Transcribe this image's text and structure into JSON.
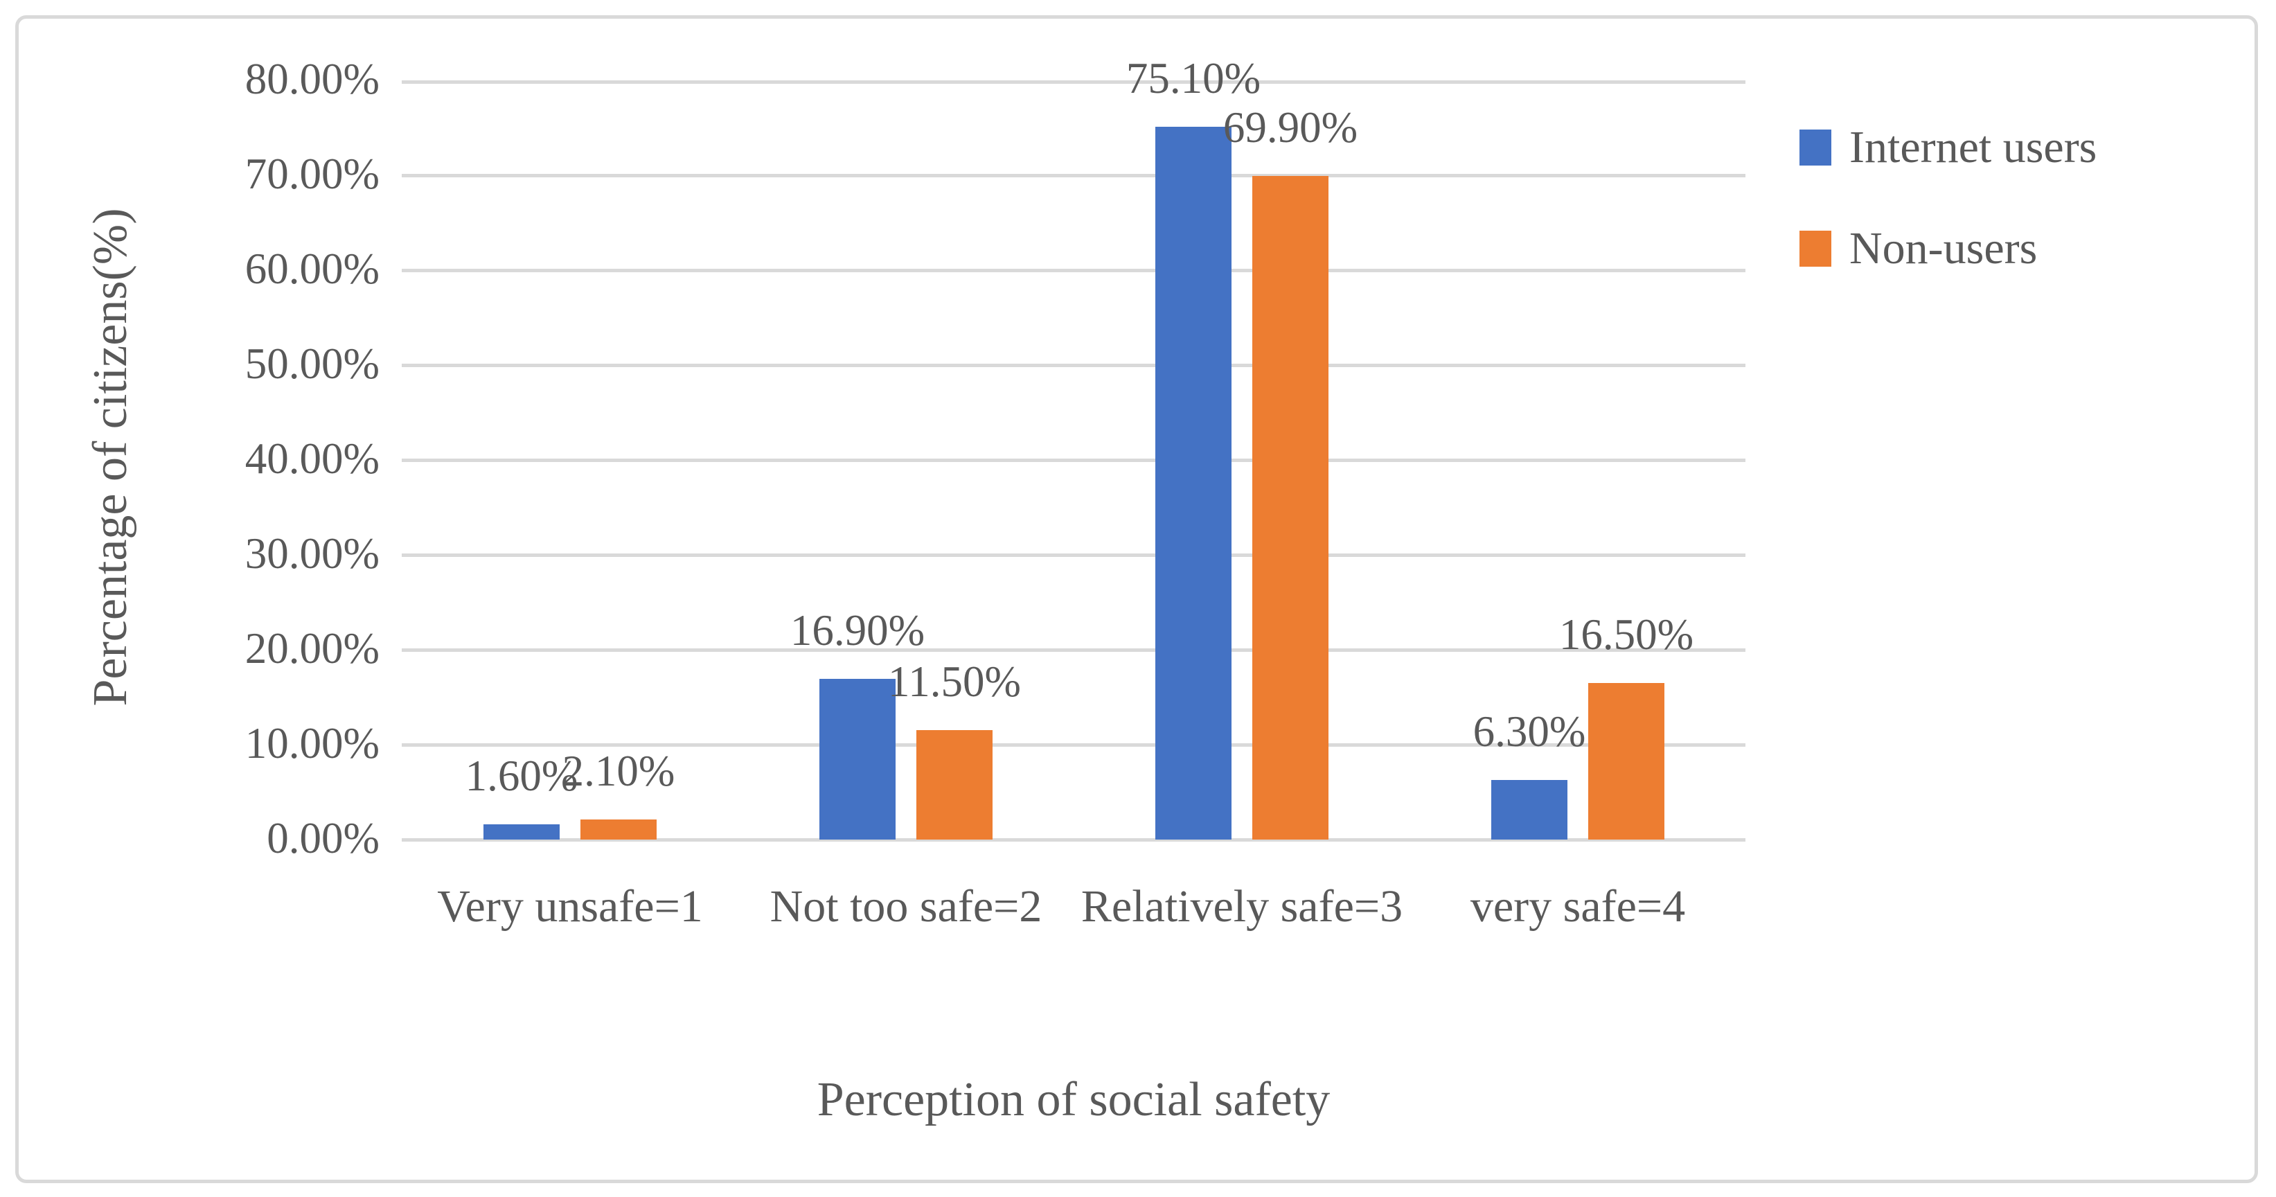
{
  "chart_data": {
    "type": "bar",
    "title": "",
    "categories": [
      "Very unsafe=1",
      "Not too safe=2",
      "Relatively safe=3",
      "very safe=4"
    ],
    "series": [
      {
        "name": "Internet users",
        "color": "#4472c4",
        "values": [
          1.6,
          16.9,
          75.1,
          6.3
        ],
        "labels": [
          "1.60%",
          "16.90%",
          "75.10%",
          "6.30%"
        ]
      },
      {
        "name": "Non-users",
        "color": "#ed7d31",
        "values": [
          2.1,
          11.5,
          69.9,
          16.5
        ],
        "labels": [
          "2.10%",
          "11.50%",
          "69.90%",
          "16.50%"
        ]
      }
    ],
    "xlabel": "Perception of social safety",
    "ylabel": "Percentage of citizens(%)",
    "ylim": [
      0,
      80
    ],
    "y_tick_step": 10,
    "y_ticks": [
      "0.00%",
      "10.00%",
      "20.00%",
      "30.00%",
      "40.00%",
      "50.00%",
      "60.00%",
      "70.00%",
      "80.00%"
    ],
    "grid": true,
    "legend_position": "right"
  },
  "style": {
    "bar_blue": "#4472c4",
    "bar_orange": "#ed7d31",
    "text_color": "#595959",
    "gridline_color": "#d9d9d9",
    "frame_border_color": "#d9d9d9",
    "background": "#ffffff"
  }
}
